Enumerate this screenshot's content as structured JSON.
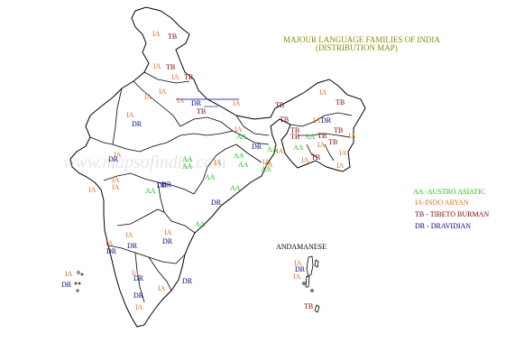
{
  "map_title": {
    "line1": "MAJOUR  LANGUAGE FAMILIES OF INDIA",
    "line2": "(DISTRIBUTION MAP)"
  },
  "colors": {
    "AA": "#18c418",
    "IA": "#e07020",
    "TB": "#800000",
    "DR": "#000080",
    "title": "#8a8a00"
  },
  "legend": [
    {
      "code": "AA",
      "text": "AA -AUSTRO ASIATIC"
    },
    {
      "code": "IA",
      "text": "IA-INDO ARYAN"
    },
    {
      "code": "TB",
      "text": "TB - TIBETO BURMAN"
    },
    {
      "code": "DR",
      "text": "DR - DRAVIDIAN"
    }
  ],
  "andaman_label": "ANDAMANESE",
  "watermark": "www.mapsofindia.com",
  "region_labels": [
    {
      "code": "IA",
      "text": "IA"
    },
    {
      "code": "TB",
      "text": "TB"
    },
    {
      "code": "IA",
      "text": "IA"
    },
    {
      "code": "TB",
      "text": "TB"
    },
    {
      "code": "IA",
      "text": "IA"
    },
    {
      "code": "TB",
      "text": "TB"
    },
    {
      "code": "IA",
      "text": "IA"
    },
    {
      "code": "IA",
      "text": "IA"
    },
    {
      "code": "DR",
      "text": "DR"
    },
    {
      "code": "IA",
      "text": "IA"
    },
    {
      "code": "TB",
      "text": "TB"
    },
    {
      "code": "IA",
      "text": "IA"
    },
    {
      "code": "DR",
      "text": "DR"
    },
    {
      "code": "IA",
      "text": "IA"
    },
    {
      "code": "TB",
      "text": "TB"
    },
    {
      "code": "IA",
      "text": "IA"
    },
    {
      "code": "TB",
      "text": "TB"
    },
    {
      "code": "TB",
      "text": "TB"
    },
    {
      "code": "TB",
      "text": "TB"
    },
    {
      "code": "IA",
      "text": "IA"
    },
    {
      "code": "DR",
      "text": "DR"
    },
    {
      "code": "TB",
      "text": "TB"
    },
    {
      "code": "AA",
      "text": "AA"
    },
    {
      "code": "TB",
      "text": "TB"
    },
    {
      "code": "TB",
      "text": "TB"
    },
    {
      "code": "IA",
      "text": "IA"
    },
    {
      "code": "IA",
      "text": "IA"
    },
    {
      "code": "TB",
      "text": "TB"
    },
    {
      "code": "TB",
      "text": "TB"
    },
    {
      "code": "IA",
      "text": "IA"
    },
    {
      "code": "IA",
      "text": "IA"
    },
    {
      "code": "AA",
      "text": "AA"
    },
    {
      "code": "DR",
      "text": "DR"
    },
    {
      "code": "IA",
      "text": "IA"
    },
    {
      "code": "AA",
      "text": "AA"
    },
    {
      "code": "AA",
      "text": "AA"
    },
    {
      "code": "IA",
      "text": "IA"
    },
    {
      "code": "AA",
      "text": "AA"
    },
    {
      "code": "IA",
      "text": "IA"
    },
    {
      "code": "AA",
      "text": "AA"
    },
    {
      "code": "IA",
      "text": "IA"
    },
    {
      "code": "DR",
      "text": "DR"
    },
    {
      "code": "IA",
      "text": "IA"
    },
    {
      "code": "DR",
      "text": "DR"
    },
    {
      "code": "AA",
      "text": "AA"
    },
    {
      "code": "AA",
      "text": "AA"
    },
    {
      "code": "DR",
      "text": "DR"
    },
    {
      "code": "IA",
      "text": "IA"
    },
    {
      "code": "AA",
      "text": "AA"
    },
    {
      "code": "DR",
      "text": "DR"
    },
    {
      "code": "AA",
      "text": "AA"
    },
    {
      "code": "IA",
      "text": "IA"
    },
    {
      "code": "IA",
      "text": "IA"
    },
    {
      "code": "AA",
      "text": "AA"
    },
    {
      "code": "AA",
      "text": "AA"
    },
    {
      "code": "IA",
      "text": "IA"
    },
    {
      "code": "AA",
      "text": "AA"
    },
    {
      "code": "IA",
      "text": "IA"
    },
    {
      "code": "IA",
      "text": "IA"
    },
    {
      "code": "DR",
      "text": "DR"
    },
    {
      "code": "IA",
      "text": "IA"
    },
    {
      "code": "DR",
      "text": "DR"
    },
    {
      "code": "IA",
      "text": "IA"
    },
    {
      "code": "DR",
      "text": "DR"
    },
    {
      "code": "IA",
      "text": "IA"
    },
    {
      "code": "DR",
      "text": "DR"
    },
    {
      "code": "DR",
      "text": "DR"
    },
    {
      "code": "IA",
      "text": "IA"
    },
    {
      "code": "IA",
      "text": "IA"
    },
    {
      "code": "DR",
      "text": "DR"
    },
    {
      "code": "IA",
      "text": "IA"
    },
    {
      "code": "DR",
      "text": "DR"
    },
    {
      "code": "IA",
      "text": "IA"
    },
    {
      "code": "DR",
      "text": "DR"
    },
    {
      "code": "IA",
      "text": "IA"
    },
    {
      "code": "TB",
      "text": "TB"
    },
    {
      "code": "DR",
      "text": "DR"
    },
    {
      "code": "AA",
      "text": "AA"
    }
  ]
}
